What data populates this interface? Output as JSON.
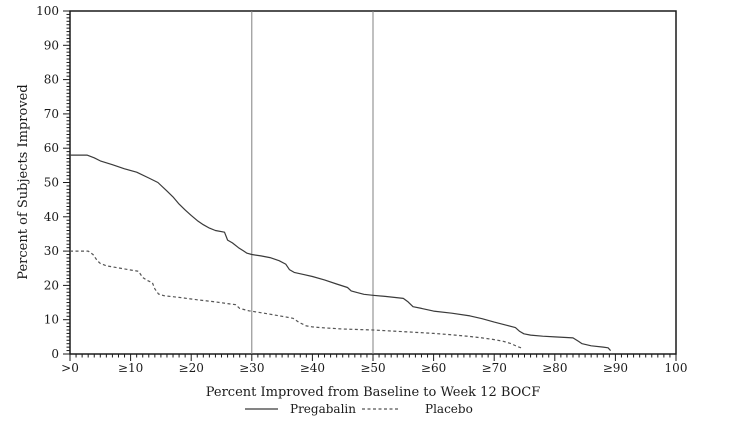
{
  "chart_data": {
    "type": "line",
    "title": "",
    "xlabel": "Percent Improved from Baseline to Week 12 BOCF",
    "ylabel": "Percent of Subjects Improved",
    "xlim": [
      0,
      100
    ],
    "ylim": [
      0,
      100
    ],
    "grid": false,
    "legend_position": "bottom",
    "x_ticks": {
      "values": [
        0,
        10,
        20,
        30,
        40,
        50,
        60,
        70,
        80,
        90,
        100
      ],
      "labels": [
        ">0",
        "≥10",
        "≥20",
        "≥30",
        "≥40",
        "≥50",
        "≥60",
        "≥70",
        "≥80",
        "≥90",
        "100"
      ]
    },
    "y_ticks": {
      "values": [
        0,
        10,
        20,
        30,
        40,
        50,
        60,
        70,
        80,
        90,
        100
      ],
      "labels": [
        "0",
        "10",
        "20",
        "30",
        "40",
        "50",
        "60",
        "70",
        "80",
        "90",
        "100"
      ]
    },
    "reference_lines_x": [
      30,
      50
    ],
    "colors": {
      "axis": "#1a1a1a",
      "pregabalin_line": "#3a3a3a",
      "placebo_line": "#555555",
      "reference_line": "#808080"
    },
    "series": [
      {
        "name": "Pregabalin",
        "line_style": "solid",
        "points": [
          [
            0,
            58
          ],
          [
            2.8,
            58
          ],
          [
            4,
            57.2
          ],
          [
            5,
            56.3
          ],
          [
            7,
            55.2
          ],
          [
            9,
            54
          ],
          [
            11,
            53
          ],
          [
            13,
            51.3
          ],
          [
            14.5,
            50
          ],
          [
            16,
            47.5
          ],
          [
            17,
            45.8
          ],
          [
            18,
            43.7
          ],
          [
            19,
            42
          ],
          [
            20,
            40.4
          ],
          [
            21,
            38.9
          ],
          [
            22,
            37.7
          ],
          [
            23,
            36.7
          ],
          [
            24,
            36
          ],
          [
            25.5,
            35.5
          ],
          [
            26,
            33.2
          ],
          [
            26.8,
            32.4
          ],
          [
            27.8,
            31
          ],
          [
            28.6,
            30.1
          ],
          [
            29.2,
            29.4
          ],
          [
            30,
            29
          ],
          [
            31.5,
            28.6
          ],
          [
            33,
            28.1
          ],
          [
            34.5,
            27.2
          ],
          [
            35.6,
            26.2
          ],
          [
            36.2,
            24.6
          ],
          [
            37,
            23.8
          ],
          [
            38.5,
            23.2
          ],
          [
            40,
            22.6
          ],
          [
            42,
            21.6
          ],
          [
            44,
            20.4
          ],
          [
            45.8,
            19.4
          ],
          [
            46.4,
            18.4
          ],
          [
            47.4,
            17.9
          ],
          [
            48.5,
            17.4
          ],
          [
            50,
            17.1
          ],
          [
            52,
            16.8
          ],
          [
            55,
            16.2
          ],
          [
            55.8,
            15.2
          ],
          [
            56.6,
            13.8
          ],
          [
            58,
            13.3
          ],
          [
            60,
            12.5
          ],
          [
            63,
            11.9
          ],
          [
            66,
            11.1
          ],
          [
            68,
            10.3
          ],
          [
            70,
            9.3
          ],
          [
            72,
            8.4
          ],
          [
            73.5,
            7.7
          ],
          [
            74.2,
            6.6
          ],
          [
            74.9,
            5.9
          ],
          [
            76,
            5.5
          ],
          [
            78,
            5.2
          ],
          [
            80,
            5
          ],
          [
            83,
            4.7
          ],
          [
            83.9,
            3.7
          ],
          [
            84.5,
            3
          ],
          [
            86,
            2.4
          ],
          [
            88,
            2
          ],
          [
            88.8,
            1.8
          ],
          [
            89.2,
            1
          ]
        ]
      },
      {
        "name": "Placebo",
        "line_style": "dashed",
        "points": [
          [
            0,
            30
          ],
          [
            3,
            30
          ],
          [
            3.8,
            29
          ],
          [
            4.5,
            27.2
          ],
          [
            5,
            26.4
          ],
          [
            6,
            25.7
          ],
          [
            8,
            25.1
          ],
          [
            10,
            24.5
          ],
          [
            11.3,
            24.1
          ],
          [
            12,
            22.3
          ],
          [
            12.8,
            21.4
          ],
          [
            13.6,
            20.8
          ],
          [
            14,
            19
          ],
          [
            14.6,
            17.5
          ],
          [
            15.5,
            17
          ],
          [
            18,
            16.5
          ],
          [
            21,
            15.8
          ],
          [
            24,
            15.2
          ],
          [
            26,
            14.7
          ],
          [
            27.3,
            14.4
          ],
          [
            28,
            13.3
          ],
          [
            29.5,
            12.6
          ],
          [
            31,
            12.2
          ],
          [
            33,
            11.6
          ],
          [
            35,
            11
          ],
          [
            36.8,
            10.4
          ],
          [
            37.8,
            9.2
          ],
          [
            39,
            8.2
          ],
          [
            40,
            7.9
          ],
          [
            42,
            7.6
          ],
          [
            45,
            7.3
          ],
          [
            48,
            7.1
          ],
          [
            50,
            7
          ],
          [
            53,
            6.7
          ],
          [
            56,
            6.4
          ],
          [
            60,
            6
          ],
          [
            63,
            5.6
          ],
          [
            66,
            5.1
          ],
          [
            68,
            4.7
          ],
          [
            70,
            4.2
          ],
          [
            71.5,
            3.7
          ],
          [
            72.8,
            3
          ],
          [
            73.8,
            2.2
          ],
          [
            74.6,
            1.7
          ]
        ]
      }
    ]
  }
}
